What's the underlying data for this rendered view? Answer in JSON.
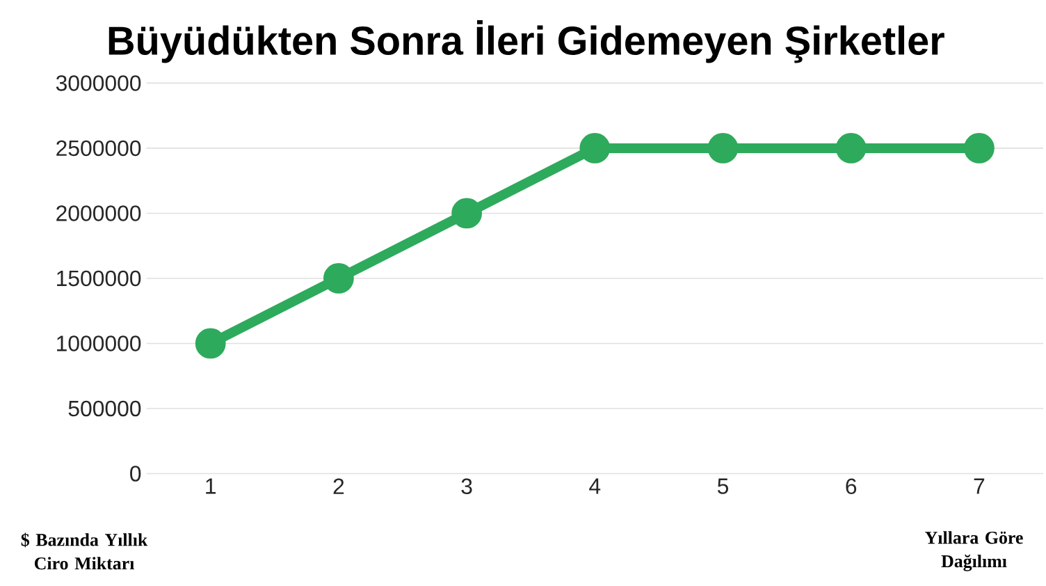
{
  "chart_data": {
    "type": "line",
    "title": "Büyüdükten Sonra İleri Gidemeyen Şirketler",
    "xlabel": "Yıllara Göre Dağılımı",
    "ylabel": "$ Bazında Yıllık Ciro Miktarı",
    "categories": [
      "1",
      "2",
      "3",
      "4",
      "5",
      "6",
      "7"
    ],
    "series": [
      {
        "color": "#2eaa5c",
        "values": [
          1000000,
          1500000,
          2000000,
          2500000,
          2500000,
          2500000,
          2500000
        ]
      }
    ],
    "ylim": [
      0,
      3000000
    ],
    "yticks": [
      0,
      500000,
      1000000,
      1500000,
      2000000,
      2500000,
      3000000
    ],
    "grid": "y",
    "marker": "circle",
    "line_style": "solid"
  }
}
